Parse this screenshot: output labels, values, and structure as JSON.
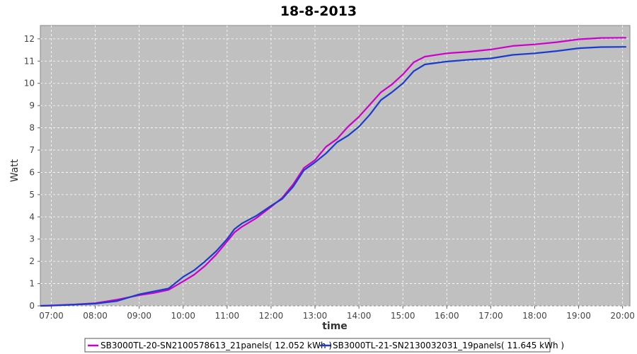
{
  "colors": {
    "plot_background": "#c0c0c0",
    "grid": "#ffffff",
    "series_1": "#cc00cc",
    "series_2": "#1a3ccc"
  },
  "chart_data": {
    "type": "line",
    "title": "18-8-2013",
    "xlabel": "time",
    "ylabel": "Watt",
    "xlim": [
      "06:45",
      "20:10"
    ],
    "ylim": [
      0,
      12.6
    ],
    "x_ticks": [
      "07:00",
      "08:00",
      "09:00",
      "10:00",
      "11:00",
      "12:00",
      "13:00",
      "14:00",
      "15:00",
      "16:00",
      "17:00",
      "18:00",
      "19:00",
      "20:00"
    ],
    "y_ticks": [
      0,
      1,
      2,
      3,
      4,
      5,
      6,
      7,
      8,
      9,
      10,
      11,
      12
    ],
    "grid": true,
    "legend_position": "bottom",
    "series": [
      {
        "name": "SB3000TL-20-SN2100578613_21panels( 12.052 kWh )",
        "color": "#cc00cc",
        "points": [
          [
            "06:45",
            0.0
          ],
          [
            "07:00",
            0.02
          ],
          [
            "07:30",
            0.06
          ],
          [
            "08:00",
            0.12
          ],
          [
            "08:30",
            0.28
          ],
          [
            "09:00",
            0.48
          ],
          [
            "09:20",
            0.58
          ],
          [
            "09:40",
            0.72
          ],
          [
            "10:00",
            1.1
          ],
          [
            "10:15",
            1.4
          ],
          [
            "10:30",
            1.8
          ],
          [
            "10:45",
            2.3
          ],
          [
            "11:00",
            2.9
          ],
          [
            "11:10",
            3.3
          ],
          [
            "11:20",
            3.55
          ],
          [
            "11:40",
            3.95
          ],
          [
            "12:00",
            4.45
          ],
          [
            "12:15",
            4.85
          ],
          [
            "12:30",
            5.45
          ],
          [
            "12:45",
            6.2
          ],
          [
            "13:00",
            6.55
          ],
          [
            "13:15",
            7.15
          ],
          [
            "13:30",
            7.5
          ],
          [
            "13:45",
            8.05
          ],
          [
            "14:00",
            8.5
          ],
          [
            "14:15",
            9.05
          ],
          [
            "14:30",
            9.6
          ],
          [
            "14:45",
            9.95
          ],
          [
            "15:00",
            10.4
          ],
          [
            "15:15",
            10.95
          ],
          [
            "15:30",
            11.2
          ],
          [
            "16:00",
            11.35
          ],
          [
            "16:30",
            11.42
          ],
          [
            "17:00",
            11.52
          ],
          [
            "17:30",
            11.68
          ],
          [
            "18:00",
            11.75
          ],
          [
            "18:30",
            11.85
          ],
          [
            "19:00",
            11.98
          ],
          [
            "19:30",
            12.04
          ],
          [
            "20:05",
            12.05
          ]
        ]
      },
      {
        "name": "SB3000TL-21-SN2130032031_19panels( 11.645 kWh )",
        "color": "#1a3ccc",
        "points": [
          [
            "06:45",
            0.0
          ],
          [
            "07:00",
            0.01
          ],
          [
            "07:30",
            0.05
          ],
          [
            "08:00",
            0.1
          ],
          [
            "08:30",
            0.22
          ],
          [
            "09:00",
            0.52
          ],
          [
            "09:20",
            0.65
          ],
          [
            "09:40",
            0.78
          ],
          [
            "10:00",
            1.3
          ],
          [
            "10:15",
            1.6
          ],
          [
            "10:30",
            2.0
          ],
          [
            "10:45",
            2.45
          ],
          [
            "11:00",
            3.0
          ],
          [
            "11:10",
            3.45
          ],
          [
            "11:20",
            3.7
          ],
          [
            "11:40",
            4.05
          ],
          [
            "12:00",
            4.5
          ],
          [
            "12:15",
            4.8
          ],
          [
            "12:30",
            5.35
          ],
          [
            "12:45",
            6.1
          ],
          [
            "13:00",
            6.45
          ],
          [
            "13:15",
            6.85
          ],
          [
            "13:30",
            7.35
          ],
          [
            "13:45",
            7.65
          ],
          [
            "14:00",
            8.05
          ],
          [
            "14:15",
            8.6
          ],
          [
            "14:30",
            9.25
          ],
          [
            "14:45",
            9.6
          ],
          [
            "15:00",
            10.0
          ],
          [
            "15:15",
            10.55
          ],
          [
            "15:30",
            10.85
          ],
          [
            "16:00",
            10.98
          ],
          [
            "16:30",
            11.06
          ],
          [
            "17:00",
            11.12
          ],
          [
            "17:30",
            11.28
          ],
          [
            "18:00",
            11.35
          ],
          [
            "18:30",
            11.45
          ],
          [
            "19:00",
            11.58
          ],
          [
            "19:30",
            11.63
          ],
          [
            "20:05",
            11.64
          ]
        ]
      }
    ]
  }
}
